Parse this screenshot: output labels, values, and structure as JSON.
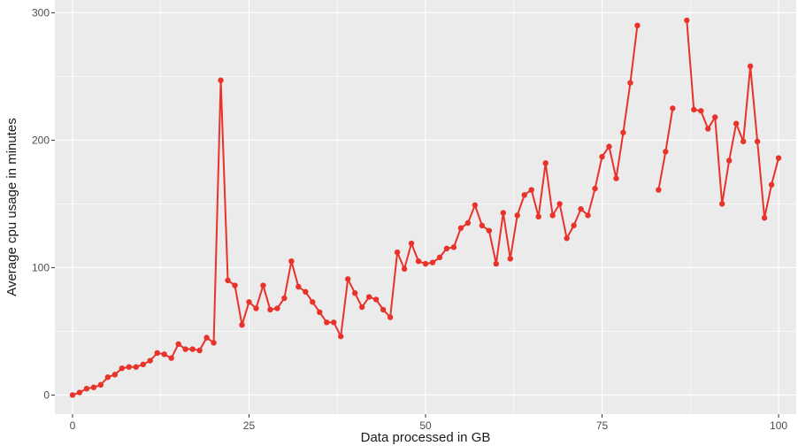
{
  "colors": {
    "panel": "#ebebeb",
    "grid": "#ffffff",
    "series": "#e8322a",
    "tick": "#4d4d4d",
    "title": "#1a1a1a"
  },
  "chart_data": {
    "type": "line",
    "title": "",
    "xlabel": "Data processed in GB",
    "ylabel": "Average cpu usage in minutes",
    "xlim": [
      -2.5,
      102.5
    ],
    "ylim": [
      -15,
      310
    ],
    "xticks": [
      0,
      25,
      50,
      75,
      100
    ],
    "xtick_labels": [
      "0",
      "25",
      "50",
      "75",
      "100"
    ],
    "yticks": [
      0,
      100,
      200,
      300
    ],
    "ytick_labels": [
      "0",
      "100",
      "200",
      "300"
    ],
    "grid": true,
    "legend": "none",
    "series": [
      {
        "x": [
          0,
          1,
          2,
          3,
          4,
          5,
          6,
          7,
          8,
          9,
          10,
          11,
          12,
          13,
          14,
          15,
          16,
          17,
          18,
          19,
          20,
          21,
          22,
          23,
          24,
          25,
          26,
          27,
          28,
          29,
          30,
          31,
          32,
          33,
          34,
          35,
          36,
          37,
          38,
          39,
          40,
          41,
          42,
          43,
          44,
          45,
          46,
          47,
          48,
          49,
          50,
          51,
          52,
          53,
          54,
          55,
          56,
          57,
          58,
          59,
          60,
          61,
          62,
          63,
          64,
          65,
          66,
          67,
          68,
          69,
          70,
          71,
          72,
          73,
          74,
          75,
          76,
          77,
          78,
          79,
          80,
          81,
          82,
          83,
          84,
          85,
          86,
          87,
          88,
          89,
          90,
          91,
          92,
          93,
          94,
          95,
          96,
          97,
          98,
          99,
          100
        ],
        "y": [
          0,
          2,
          5,
          6,
          8,
          14,
          16,
          21,
          22,
          22,
          24,
          27,
          33,
          32,
          29,
          40,
          36,
          36,
          35,
          45,
          41,
          247,
          90,
          86,
          55,
          73,
          68,
          86,
          67,
          68,
          76,
          105,
          85,
          81,
          73,
          65,
          57,
          57,
          46,
          91,
          80,
          69,
          77,
          75,
          67,
          61,
          112,
          99,
          119,
          105,
          103,
          104,
          108,
          115,
          116,
          131,
          135,
          149,
          133,
          129,
          103,
          143,
          107,
          141,
          157,
          161,
          140,
          182,
          141,
          150,
          123,
          133,
          146,
          141,
          162,
          187,
          195,
          170,
          206,
          245,
          290,
          null,
          null,
          161,
          191,
          225,
          null,
          294,
          224,
          223,
          209,
          218,
          150,
          184,
          213,
          199,
          258,
          199,
          139,
          165,
          186
        ]
      }
    ]
  }
}
